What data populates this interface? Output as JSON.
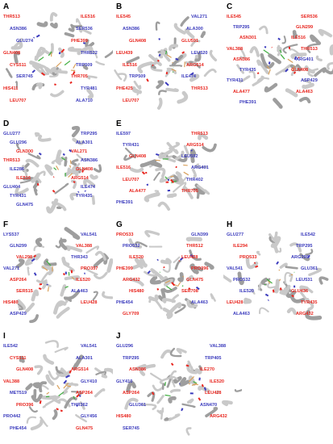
{
  "colors": {
    "red_residue": "#e8261f",
    "blue_residue": "#3b3bbd",
    "ribbon": "#bdbdbd",
    "ligand": "#3fae3f"
  },
  "panels": [
    {
      "id": "A",
      "label": "A",
      "residues": [
        {
          "t": "THR513",
          "c": "red"
        },
        {
          "t": "ILE516",
          "c": "red"
        },
        {
          "t": "ASN386",
          "c": "blue"
        },
        {
          "t": "SER536",
          "c": "blue"
        },
        {
          "t": "GLU274",
          "c": "blue"
        },
        {
          "t": "PHE399",
          "c": "red"
        },
        {
          "t": "GLN408",
          "c": "red"
        },
        {
          "t": "THR522",
          "c": "blue"
        },
        {
          "t": "CYS511",
          "c": "red"
        },
        {
          "t": "TRP509",
          "c": "blue"
        },
        {
          "t": "SER745",
          "c": "blue"
        },
        {
          "t": "THR705",
          "c": "red"
        },
        {
          "t": "HIS411",
          "c": "red"
        },
        {
          "t": "TYR481",
          "c": "blue"
        },
        {
          "t": "LEU707",
          "c": "red"
        },
        {
          "t": "ALA710",
          "c": "blue"
        }
      ]
    },
    {
      "id": "B",
      "label": "B",
      "residues": [
        {
          "t": "ILE545",
          "c": "red"
        },
        {
          "t": "VAL271",
          "c": "blue"
        },
        {
          "t": "ASN386",
          "c": "blue"
        },
        {
          "t": "ALA300",
          "c": "blue"
        },
        {
          "t": "GLN408",
          "c": "red"
        },
        {
          "t": "GLU591",
          "c": "red"
        },
        {
          "t": "LEU439",
          "c": "red"
        },
        {
          "t": "LEU520",
          "c": "blue"
        },
        {
          "t": "ILE516",
          "c": "red"
        },
        {
          "t": "ARG514",
          "c": "red"
        },
        {
          "t": "TRP509",
          "c": "blue"
        },
        {
          "t": "ILE474",
          "c": "blue"
        },
        {
          "t": "PHE425",
          "c": "red"
        },
        {
          "t": "THR513",
          "c": "red"
        },
        {
          "t": "LEU707",
          "c": "red"
        }
      ]
    },
    {
      "id": "C",
      "label": "C",
      "residues": [
        {
          "t": "ILE545",
          "c": "red"
        },
        {
          "t": "SER536",
          "c": "red"
        },
        {
          "t": "TRP295",
          "c": "blue"
        },
        {
          "t": "GLN299",
          "c": "red"
        },
        {
          "t": "ASN301",
          "c": "red"
        },
        {
          "t": "ILE516",
          "c": "red"
        },
        {
          "t": "VAL388",
          "c": "red"
        },
        {
          "t": "THR513",
          "c": "red"
        },
        {
          "t": "ASN386",
          "c": "red"
        },
        {
          "t": "ARG401",
          "c": "blue"
        },
        {
          "t": "TYR435",
          "c": "blue"
        },
        {
          "t": "GLN408",
          "c": "red"
        },
        {
          "t": "TYR431",
          "c": "blue"
        },
        {
          "t": "ASP429",
          "c": "blue"
        },
        {
          "t": "ALA477",
          "c": "red"
        },
        {
          "t": "ALA463",
          "c": "red"
        },
        {
          "t": "PHE391",
          "c": "blue"
        }
      ]
    },
    {
      "id": "D",
      "label": "D",
      "residues": [
        {
          "t": "GLU277",
          "c": "blue"
        },
        {
          "t": "TRP295",
          "c": "blue"
        },
        {
          "t": "GLU296",
          "c": "blue"
        },
        {
          "t": "ALA301",
          "c": "blue"
        },
        {
          "t": "GLN300",
          "c": "red"
        },
        {
          "t": "VAL271",
          "c": "red"
        },
        {
          "t": "THR513",
          "c": "red"
        },
        {
          "t": "ASN386",
          "c": "blue"
        },
        {
          "t": "ILE286",
          "c": "blue"
        },
        {
          "t": "GLN408",
          "c": "red"
        },
        {
          "t": "ILE516",
          "c": "red"
        },
        {
          "t": "ARG514",
          "c": "red"
        },
        {
          "t": "GLU404",
          "c": "blue"
        },
        {
          "t": "ILE474",
          "c": "blue"
        },
        {
          "t": "TYR431",
          "c": "blue"
        },
        {
          "t": "TYR435",
          "c": "blue"
        },
        {
          "t": "GLN475",
          "c": "blue"
        }
      ]
    },
    {
      "id": "E",
      "label": "E",
      "residues": [
        {
          "t": "ILE597",
          "c": "blue"
        },
        {
          "t": "THR513",
          "c": "red"
        },
        {
          "t": "TYR431",
          "c": "blue"
        },
        {
          "t": "ARG514",
          "c": "red"
        },
        {
          "t": "GLN408",
          "c": "red"
        },
        {
          "t": "LEU592",
          "c": "blue"
        },
        {
          "t": "ILE516",
          "c": "red"
        },
        {
          "t": "ARG401",
          "c": "blue"
        },
        {
          "t": "LEU707",
          "c": "red"
        },
        {
          "t": "THR402",
          "c": "blue"
        },
        {
          "t": "ALA477",
          "c": "red"
        },
        {
          "t": "THR705",
          "c": "red"
        },
        {
          "t": "PHE391",
          "c": "blue"
        }
      ]
    },
    {
      "id": "F",
      "label": "F",
      "residues": [
        {
          "t": "LYS537",
          "c": "blue"
        },
        {
          "t": "VAL541",
          "c": "blue"
        },
        {
          "t": "GLN299",
          "c": "blue"
        },
        {
          "t": "VAL388",
          "c": "red"
        },
        {
          "t": "VAL298",
          "c": "red"
        },
        {
          "t": "THR343",
          "c": "blue"
        },
        {
          "t": "VAL271",
          "c": "blue"
        },
        {
          "t": "PRO357",
          "c": "red"
        },
        {
          "t": "ASP264",
          "c": "red"
        },
        {
          "t": "ILE520",
          "c": "red"
        },
        {
          "t": "SER515",
          "c": "red"
        },
        {
          "t": "ALA463",
          "c": "blue"
        },
        {
          "t": "HIS480",
          "c": "red"
        },
        {
          "t": "LEU428",
          "c": "red"
        },
        {
          "t": "ASP429",
          "c": "blue"
        }
      ]
    },
    {
      "id": "G",
      "label": "G",
      "residues": [
        {
          "t": "PRO533",
          "c": "red"
        },
        {
          "t": "GLN399",
          "c": "blue"
        },
        {
          "t": "PRO532",
          "c": "blue"
        },
        {
          "t": "THR512",
          "c": "red"
        },
        {
          "t": "ILE520",
          "c": "red"
        },
        {
          "t": "LEU428",
          "c": "red"
        },
        {
          "t": "PHE399",
          "c": "red"
        },
        {
          "t": "PRO396",
          "c": "red"
        },
        {
          "t": "ARG432",
          "c": "red"
        },
        {
          "t": "GLN475",
          "c": "red"
        },
        {
          "t": "HIS480",
          "c": "red"
        },
        {
          "t": "SER708",
          "c": "red"
        },
        {
          "t": "PHE454",
          "c": "blue"
        },
        {
          "t": "ALA463",
          "c": "blue"
        },
        {
          "t": "GLY709",
          "c": "red"
        }
      ]
    },
    {
      "id": "H",
      "label": "H",
      "residues": [
        {
          "t": "GLU277",
          "c": "blue"
        },
        {
          "t": "ILE542",
          "c": "blue"
        },
        {
          "t": "ILE294",
          "c": "red"
        },
        {
          "t": "TRP295",
          "c": "blue"
        },
        {
          "t": "PRO533",
          "c": "red"
        },
        {
          "t": "ARG390",
          "c": "blue"
        },
        {
          "t": "VAL541",
          "c": "blue"
        },
        {
          "t": "GLU361",
          "c": "blue"
        },
        {
          "t": "PRO532",
          "c": "blue"
        },
        {
          "t": "LEU531",
          "c": "blue"
        },
        {
          "t": "ILE520",
          "c": "blue"
        },
        {
          "t": "GLU436",
          "c": "red"
        },
        {
          "t": "LEU428",
          "c": "red"
        },
        {
          "t": "TYR435",
          "c": "red"
        },
        {
          "t": "ALA463",
          "c": "blue"
        },
        {
          "t": "ARG432",
          "c": "red"
        }
      ]
    },
    {
      "id": "I",
      "label": "I",
      "residues": [
        {
          "t": "ILE542",
          "c": "blue"
        },
        {
          "t": "VAL541",
          "c": "blue"
        },
        {
          "t": "CYS511",
          "c": "red"
        },
        {
          "t": "ALA301",
          "c": "blue"
        },
        {
          "t": "GLN408",
          "c": "red"
        },
        {
          "t": "ARG514",
          "c": "red"
        },
        {
          "t": "VAL388",
          "c": "red"
        },
        {
          "t": "GLY410",
          "c": "blue"
        },
        {
          "t": "MET519",
          "c": "blue"
        },
        {
          "t": "ASP264",
          "c": "red"
        },
        {
          "t": "PRO396",
          "c": "red"
        },
        {
          "t": "THR362",
          "c": "blue"
        },
        {
          "t": "PRO442",
          "c": "blue"
        },
        {
          "t": "GLY456",
          "c": "blue"
        },
        {
          "t": "PHE454",
          "c": "blue"
        },
        {
          "t": "GLN475",
          "c": "red"
        }
      ]
    },
    {
      "id": "J",
      "label": "J",
      "residues": [
        {
          "t": "GLU296",
          "c": "blue"
        },
        {
          "t": "VAL388",
          "c": "blue"
        },
        {
          "t": "TRP295",
          "c": "blue"
        },
        {
          "t": "TRP405",
          "c": "blue"
        },
        {
          "t": "ASN386",
          "c": "red"
        },
        {
          "t": "ILE270",
          "c": "red"
        },
        {
          "t": "GLY410",
          "c": "blue"
        },
        {
          "t": "ILE520",
          "c": "red"
        },
        {
          "t": "ASP264",
          "c": "red"
        },
        {
          "t": "LEU428",
          "c": "red"
        },
        {
          "t": "GLU361",
          "c": "blue"
        },
        {
          "t": "ASN470",
          "c": "blue"
        },
        {
          "t": "HIS480",
          "c": "red"
        },
        {
          "t": "ARG432",
          "c": "red"
        },
        {
          "t": "SER745",
          "c": "blue"
        }
      ]
    }
  ]
}
